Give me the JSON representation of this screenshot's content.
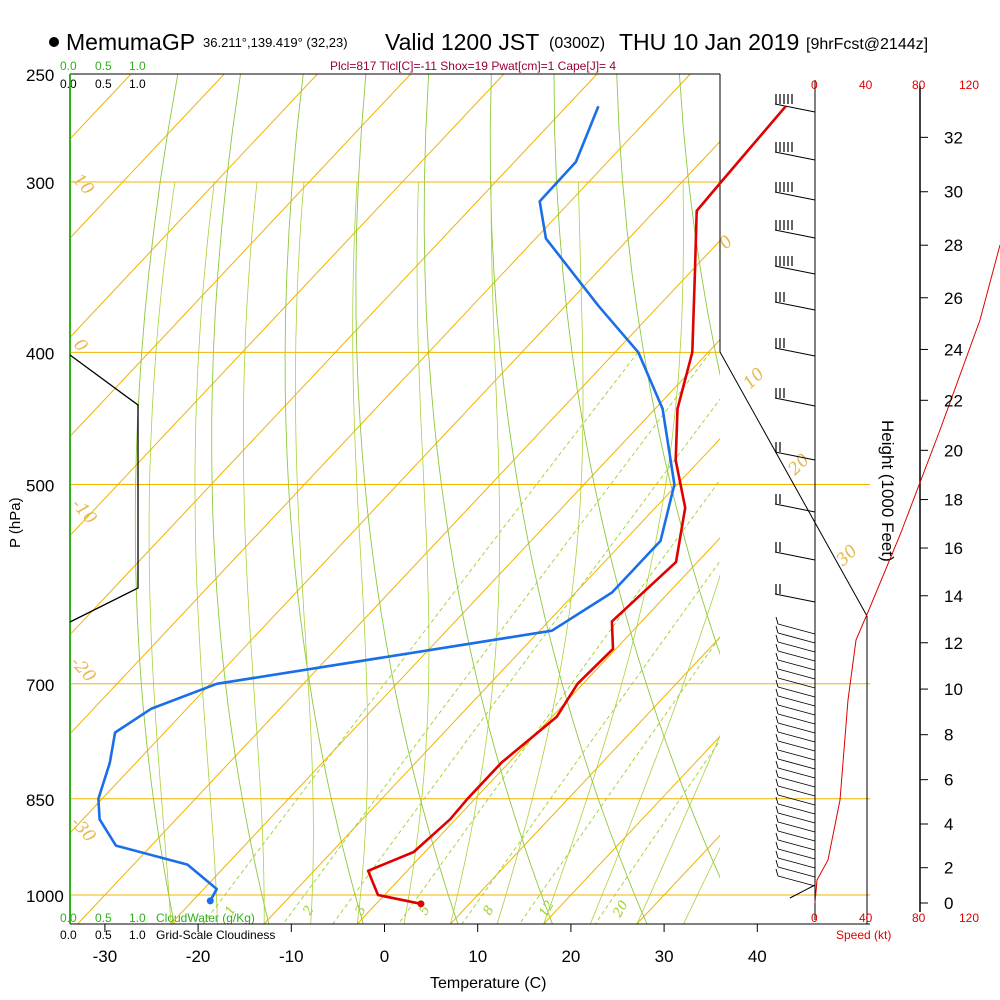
{
  "header": {
    "model": "MemumaGP",
    "location": "36.211°,139.419° (32,23)",
    "valid_prefix": "Valid 1200 JST",
    "utc": "(0300Z)",
    "valid_date": "THU 10 Jan 2019",
    "forecast": "[9hrFcst@2144z]",
    "indices": "Plcl=817 Tlcl[C]=-11 Shox=19 Pwat[cm]=1 Cape[J]= 4"
  },
  "scales": {
    "cloudwater_top": [
      "0.0",
      "0.5",
      "1.0"
    ],
    "cloudiness_top": [
      "0.0",
      "0.5",
      "1.0"
    ],
    "cloudwater_bottom": [
      "0.0",
      "0.5",
      "1.0"
    ],
    "cloudiness_bottom": [
      "0.0",
      "0.5",
      "1.0"
    ],
    "cloudwater_label": "CloudWater (g/Kg)",
    "cloudiness_label": "Grid-Scale Cloudiness",
    "speed_ticks_top": [
      "0",
      "40",
      "80",
      "120"
    ],
    "speed_ticks_bottom": [
      "0",
      "40",
      "80",
      "120"
    ],
    "speed_label": "Speed (kt)"
  },
  "colors": {
    "temperature": "#e00000",
    "dewpoint": "#1a6ee8",
    "isotherm": "#f0b400",
    "dry_adiabat": "#8cc83c",
    "moist_adiabat": "#a8d23a",
    "mixing_ratio": "#9bd12a",
    "cloud_scale": "#2fb01c",
    "wind_speed": "#e00000",
    "indices": "#990033"
  },
  "chart_data": {
    "type": "line",
    "title": "",
    "xlabel": "Temperature (C)",
    "ylabel": "P (hPa)",
    "ylabel_right": "Height (1000 Feet)",
    "xlim": [
      -35,
      47
    ],
    "x_ticks": [
      -30,
      -20,
      -10,
      0,
      10,
      20,
      30,
      40
    ],
    "y_ticks": [
      250,
      300,
      400,
      500,
      700,
      850,
      1000
    ],
    "height_ticks": [
      0,
      2,
      4,
      6,
      8,
      10,
      12,
      14,
      16,
      18,
      20,
      22,
      24,
      26,
      28,
      30,
      32
    ],
    "isotherm_labels": [
      "10",
      "0",
      "-10",
      "-20",
      "-30",
      "0",
      "10",
      "20",
      "30"
    ],
    "mixing_ratio_labels": [
      "1",
      "2",
      "3",
      "5",
      "8",
      "12",
      "20"
    ],
    "series": [
      {
        "key": "temperature",
        "p": [
          264,
          300,
          315,
          350,
          400,
          440,
          480,
          520,
          570,
          630,
          660,
          700,
          740,
          800,
          850,
          880,
          930,
          960,
          1000,
          1015
        ],
        "x": [
          -36.5,
          -35.8,
          -35.5,
          -29.4,
          -21.7,
          -17.6,
          -12.6,
          -6.8,
          -2.3,
          -3.2,
          -0.3,
          -0.6,
          0.5,
          -0.8,
          -0.8,
          -0.6,
          -1.2,
          -4.2,
          -0.7,
          4.8
        ]
      },
      {
        "key": "dewpoint",
        "p": [
          264,
          290,
          310,
          330,
          370,
          400,
          440,
          500,
          550,
          600,
          640,
          700,
          730,
          760,
          800,
          850,
          880,
          920,
          950,
          990,
          1010
        ],
        "x": [
          -56.6,
          -53.4,
          -53.3,
          -48.9,
          -36.4,
          -27.5,
          -19.2,
          -10.3,
          -6.1,
          -6.1,
          -8.7,
          -39.3,
          -43.8,
          -45.3,
          -42.8,
          -40.4,
          -38.2,
          -33.8,
          -24.2,
          -18.6,
          -18.1
        ]
      }
    ]
  }
}
